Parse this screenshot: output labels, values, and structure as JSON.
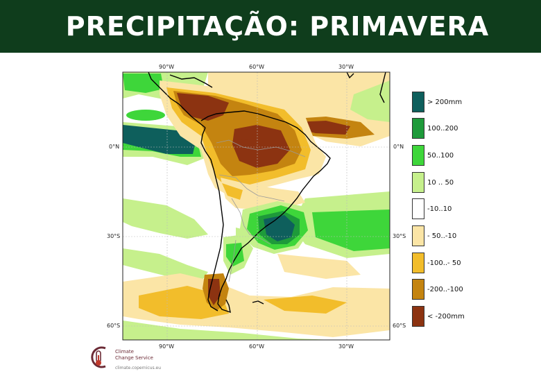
{
  "header": {
    "title": "PRECIPITAÇÃO: PRIMAVERA"
  },
  "map": {
    "axis_labels": {
      "top": [
        "90°W",
        "60°W",
        "30°W"
      ],
      "bottom": [
        "90°W",
        "60°W",
        "30°W"
      ],
      "left": [
        "0°N",
        "30°S",
        "60°S"
      ],
      "right": [
        "0°N",
        "30°S",
        "60°S"
      ]
    }
  },
  "legend": {
    "items": [
      {
        "label": "> 200mm",
        "color": "#0e5f5c"
      },
      {
        "label": "100..200",
        "color": "#1e9a3a"
      },
      {
        "label": "50..100",
        "color": "#3ed63a"
      },
      {
        "label": "10 .. 50",
        "color": "#c6f08c"
      },
      {
        "label": "-10..10",
        "color": "#ffffff"
      },
      {
        "label": "- 50..-10",
        "color": "#fbe5a6"
      },
      {
        "label": "-100..- 50",
        "color": "#f2bd2b"
      },
      {
        "label": "-200..-100",
        "color": "#c48410"
      },
      {
        "label": "< -200mm",
        "color": "#8c3311"
      }
    ]
  },
  "credit": {
    "line1": "Climate",
    "line2": "Change Service",
    "url": "climate.copernicus.eu"
  }
}
